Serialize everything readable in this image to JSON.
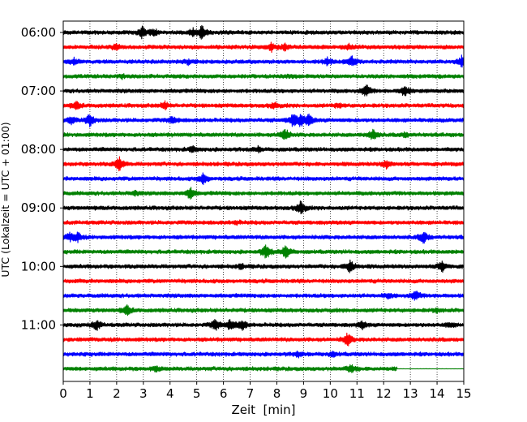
{
  "chart_data": {
    "type": "line",
    "title": "",
    "xlabel": "Zeit  [min]",
    "ylabel": "UTC (Lokalzeit = UTC + 01:00)",
    "xlim": [
      0,
      15
    ],
    "x_ticks": [
      "0",
      "1",
      "2",
      "3",
      "4",
      "5",
      "6",
      "7",
      "8",
      "9",
      "10",
      "11",
      "12",
      "13",
      "14",
      "15"
    ],
    "y_tick_labels": [
      "06:00",
      "07:00",
      "08:00",
      "09:00",
      "10:00",
      "11:00"
    ],
    "grid": "vertical dotted",
    "trace_colors": [
      "#000000",
      "#ff0000",
      "#0000ff",
      "#008000"
    ],
    "series": [
      {
        "start": "06:00",
        "events": [
          {
            "x": 2.95,
            "amp": 0.8
          },
          {
            "x": 3.4,
            "amp": 0.5
          },
          {
            "x": 4.85,
            "amp": 0.5
          },
          {
            "x": 5.2,
            "amp": 1.0
          }
        ]
      },
      {
        "start": "06:15",
        "events": [
          {
            "x": 1.95,
            "amp": 0.4
          },
          {
            "x": 7.8,
            "amp": 0.6
          },
          {
            "x": 8.3,
            "amp": 0.4
          },
          {
            "x": 10.7,
            "amp": 0.3
          }
        ]
      },
      {
        "start": "06:30",
        "events": [
          {
            "x": 0.4,
            "amp": 0.4
          },
          {
            "x": 4.7,
            "amp": 0.3
          },
          {
            "x": 9.9,
            "amp": 0.5
          },
          {
            "x": 10.8,
            "amp": 0.8
          },
          {
            "x": 14.95,
            "amp": 0.9
          }
        ]
      },
      {
        "start": "06:45",
        "events": [
          {
            "x": 2.2,
            "amp": 0.2
          },
          {
            "x": 8.6,
            "amp": 0.2
          }
        ]
      },
      {
        "start": "07:00",
        "events": [
          {
            "x": 11.35,
            "amp": 0.9
          },
          {
            "x": 12.8,
            "amp": 0.8
          }
        ]
      },
      {
        "start": "07:15",
        "events": [
          {
            "x": 0.5,
            "amp": 0.5
          },
          {
            "x": 3.8,
            "amp": 0.5
          },
          {
            "x": 7.9,
            "amp": 0.4
          },
          {
            "x": 10.3,
            "amp": 0.3
          }
        ]
      },
      {
        "start": "07:30",
        "events": [
          {
            "x": 0.3,
            "amp": 0.5
          },
          {
            "x": 1.0,
            "amp": 0.9
          },
          {
            "x": 4.1,
            "amp": 0.5
          },
          {
            "x": 8.6,
            "amp": 0.9
          },
          {
            "x": 8.9,
            "amp": 0.8
          },
          {
            "x": 9.2,
            "amp": 0.8
          }
        ]
      },
      {
        "start": "07:45",
        "events": [
          {
            "x": 8.3,
            "amp": 0.9
          },
          {
            "x": 11.6,
            "amp": 0.8
          },
          {
            "x": 12.8,
            "amp": 0.3
          }
        ]
      },
      {
        "start": "08:00",
        "events": [
          {
            "x": 4.85,
            "amp": 0.4
          },
          {
            "x": 7.3,
            "amp": 0.3
          }
        ]
      },
      {
        "start": "08:15",
        "events": [
          {
            "x": 2.1,
            "amp": 1.0
          },
          {
            "x": 12.1,
            "amp": 0.6
          }
        ]
      },
      {
        "start": "08:30",
        "events": [
          {
            "x": 5.25,
            "amp": 0.8
          }
        ]
      },
      {
        "start": "08:45",
        "events": [
          {
            "x": 2.7,
            "amp": 0.3
          },
          {
            "x": 4.75,
            "amp": 0.9
          }
        ]
      },
      {
        "start": "09:00",
        "events": [
          {
            "x": 8.9,
            "amp": 1.0
          }
        ]
      },
      {
        "start": "09:15",
        "events": [
          {
            "x": 6.5,
            "amp": 0.2
          }
        ]
      },
      {
        "start": "09:30",
        "events": [
          {
            "x": 0.25,
            "amp": 0.5
          },
          {
            "x": 0.55,
            "amp": 0.6
          },
          {
            "x": 13.5,
            "amp": 0.9
          }
        ]
      },
      {
        "start": "09:45",
        "events": [
          {
            "x": 7.6,
            "amp": 1.0
          },
          {
            "x": 8.35,
            "amp": 1.0
          }
        ]
      },
      {
        "start": "10:00",
        "events": [
          {
            "x": 6.65,
            "amp": 0.3
          },
          {
            "x": 10.75,
            "amp": 1.0
          },
          {
            "x": 14.2,
            "amp": 0.8
          }
        ]
      },
      {
        "start": "10:15",
        "events": []
      },
      {
        "start": "10:30",
        "events": [
          {
            "x": 12.2,
            "amp": 0.3
          },
          {
            "x": 13.2,
            "amp": 0.7
          }
        ]
      },
      {
        "start": "10:45",
        "events": [
          {
            "x": 2.4,
            "amp": 0.7
          },
          {
            "x": 14.0,
            "amp": 0.2
          }
        ]
      },
      {
        "start": "11:00",
        "events": [
          {
            "x": 1.25,
            "amp": 0.7
          },
          {
            "x": 5.7,
            "amp": 0.8
          },
          {
            "x": 6.25,
            "amp": 0.7
          },
          {
            "x": 6.7,
            "amp": 0.8
          },
          {
            "x": 11.2,
            "amp": 0.5
          },
          {
            "x": 14.5,
            "amp": 0.3
          }
        ]
      },
      {
        "start": "11:15",
        "events": [
          {
            "x": 10.65,
            "amp": 0.9
          }
        ]
      },
      {
        "start": "11:30",
        "events": [
          {
            "x": 8.8,
            "amp": 0.3
          },
          {
            "x": 10.1,
            "amp": 0.3
          }
        ]
      },
      {
        "start": "11:45",
        "events": [
          {
            "x": 3.5,
            "amp": 0.3
          },
          {
            "x": 10.8,
            "amp": 0.6
          }
        ],
        "end": 12.5
      }
    ]
  }
}
